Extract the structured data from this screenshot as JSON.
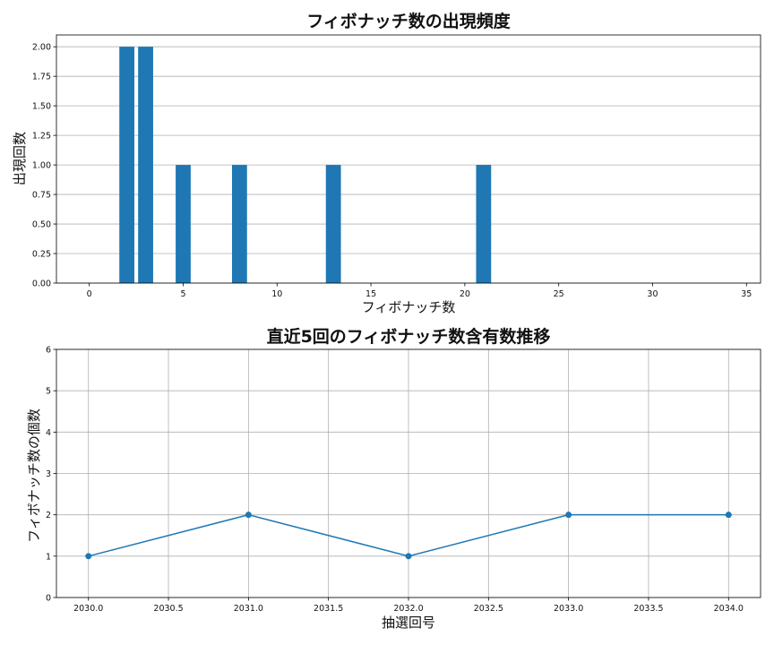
{
  "chart_data": [
    {
      "type": "bar",
      "title": "フィボナッチ数の出現頻度",
      "xlabel": "フィボナッチ数",
      "ylabel": "出現回数",
      "x": [
        2,
        3,
        5,
        8,
        13,
        21
      ],
      "values": [
        2,
        2,
        1,
        1,
        1,
        1
      ],
      "color": "#1f77b4",
      "xlim": [
        -1.75,
        35.75
      ],
      "ylim": [
        0,
        2.1
      ],
      "xticks": [
        0,
        5,
        10,
        15,
        20,
        25,
        30,
        35
      ],
      "xtick_labels": [
        "0",
        "5",
        "10",
        "15",
        "20",
        "25",
        "30",
        "35"
      ],
      "yticks": [
        0,
        0.25,
        0.5,
        0.75,
        1.0,
        1.25,
        1.5,
        1.75,
        2.0
      ],
      "ytick_labels": [
        "0.00",
        "0.25",
        "0.50",
        "0.75",
        "1.00",
        "1.25",
        "1.50",
        "1.75",
        "2.00"
      ],
      "grid": "y"
    },
    {
      "type": "line",
      "title": "直近5回のフィボナッチ数含有数推移",
      "xlabel": "抽選回号",
      "ylabel": "フィボナッチ数の個数",
      "x": [
        2030,
        2031,
        2032,
        2033,
        2034
      ],
      "values": [
        1,
        2,
        1,
        2,
        2
      ],
      "color": "#1f77b4",
      "marker": "circle",
      "xlim": [
        2029.8,
        2034.2
      ],
      "ylim": [
        0,
        6
      ],
      "xticks": [
        2030,
        2030.5,
        2031,
        2031.5,
        2032,
        2032.5,
        2033,
        2033.5,
        2034
      ],
      "xtick_labels": [
        "2030.0",
        "2030.5",
        "2031.0",
        "2031.5",
        "2032.0",
        "2032.5",
        "2033.0",
        "2033.5",
        "2034.0"
      ],
      "yticks": [
        0,
        1,
        2,
        3,
        4,
        5,
        6
      ],
      "ytick_labels": [
        "0",
        "1",
        "2",
        "3",
        "4",
        "5",
        "6"
      ],
      "grid": "both"
    }
  ]
}
